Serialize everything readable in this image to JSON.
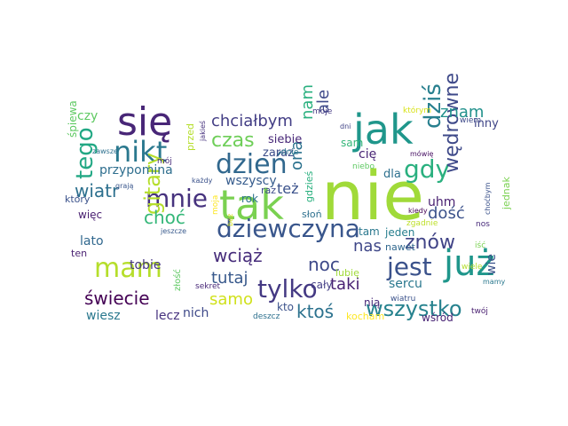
{
  "word_cloud": {
    "words": [
      {
        "text": "nie",
        "color": "#a0da39"
      },
      {
        "text": "się",
        "color": "#482677"
      },
      {
        "text": "jak",
        "color": "#1f968b"
      },
      {
        "text": "tak",
        "color": "#7ad151"
      },
      {
        "text": "już",
        "color": "#1f968b"
      },
      {
        "text": "dzień",
        "color": "#31688e"
      },
      {
        "text": "nikt",
        "color": "#2a788e"
      },
      {
        "text": "dziewczyna",
        "color": "#39568c"
      },
      {
        "text": "mnie",
        "color": "#46327e"
      },
      {
        "text": "mam",
        "color": "#b5de2b"
      },
      {
        "text": "jest",
        "color": "#3b528b"
      },
      {
        "text": "dziś",
        "color": "#277f8e"
      },
      {
        "text": "gdy",
        "color": "#2ab07f"
      },
      {
        "text": "tylko",
        "color": "#443983"
      },
      {
        "text": "wszystko",
        "color": "#26828e"
      },
      {
        "text": "gitary",
        "color": "#b5de2b"
      },
      {
        "text": "tego",
        "color": "#22a884"
      },
      {
        "text": "wędrowne",
        "color": "#3e4989"
      },
      {
        "text": "czas",
        "color": "#6ece58"
      },
      {
        "text": "chciałbym",
        "color": "#433e85"
      },
      {
        "text": "znów",
        "color": "#414487"
      },
      {
        "text": "wiatr",
        "color": "#2d708e"
      },
      {
        "text": "choć",
        "color": "#35b779"
      },
      {
        "text": "świecie",
        "color": "#440154"
      },
      {
        "text": "noc",
        "color": "#3e4989"
      },
      {
        "text": "ktoś",
        "color": "#2c728e"
      },
      {
        "text": "wciąż",
        "color": "#472d7b"
      },
      {
        "text": "tutaj",
        "color": "#38598c"
      },
      {
        "text": "znam",
        "color": "#21918c"
      },
      {
        "text": "samo",
        "color": "#d0e11c"
      },
      {
        "text": "nam",
        "color": "#2ab07f"
      },
      {
        "text": "ale",
        "color": "#3e4989"
      },
      {
        "text": "dość",
        "color": "#3b528b"
      },
      {
        "text": "taki",
        "color": "#482173"
      },
      {
        "text": "nas",
        "color": "#3f4788"
      },
      {
        "text": "ona",
        "color": "#2c728e"
      },
      {
        "text": "też",
        "color": "#3b528b"
      },
      {
        "text": "przypomina",
        "color": "#2e6e8e"
      },
      {
        "text": "wszyscy",
        "color": "#365c8d"
      },
      {
        "text": "wiesz",
        "color": "#2a788e"
      },
      {
        "text": "lecz",
        "color": "#46327e"
      },
      {
        "text": "zaraz",
        "color": "#3d4e8a"
      },
      {
        "text": "siebie",
        "color": "#482878"
      },
      {
        "text": "czy",
        "color": "#5ec962"
      },
      {
        "text": "sercu",
        "color": "#2a788e"
      },
      {
        "text": "uhm",
        "color": "#481f70"
      },
      {
        "text": "cię",
        "color": "#482475"
      },
      {
        "text": "tobie",
        "color": "#453781"
      },
      {
        "text": "nich",
        "color": "#3e4989"
      },
      {
        "text": "inny",
        "color": "#404688"
      },
      {
        "text": "lato",
        "color": "#31688e"
      },
      {
        "text": "cały",
        "color": "#433e85"
      },
      {
        "text": "więc",
        "color": "#481f70"
      },
      {
        "text": "kto",
        "color": "#3b528b"
      },
      {
        "text": "wie",
        "color": "#3b528b"
      },
      {
        "text": "rok",
        "color": "#2c728e"
      },
      {
        "text": "raz",
        "color": "#3e4989"
      },
      {
        "text": "nią",
        "color": "#482878"
      },
      {
        "text": "sam",
        "color": "#35b779"
      },
      {
        "text": "dla",
        "color": "#2d708e"
      },
      {
        "text": "jeden",
        "color": "#277f8e"
      },
      {
        "text": "śpiewa",
        "color": "#5ec962"
      },
      {
        "text": "przed",
        "color": "#b5de2b"
      },
      {
        "text": "tam",
        "color": "#2a788e"
      },
      {
        "text": "ten",
        "color": "#481f70"
      },
      {
        "text": "który",
        "color": "#3b528b"
      },
      {
        "text": "kocham",
        "color": "#fde725"
      },
      {
        "text": "wśród",
        "color": "#482475"
      },
      {
        "text": "gdzieś",
        "color": "#2ab07f"
      },
      {
        "text": "jednak",
        "color": "#7ad151"
      },
      {
        "text": "nawet",
        "color": "#31688e"
      },
      {
        "text": "słoń",
        "color": "#2d708e"
      },
      {
        "text": "złość",
        "color": "#5ec962"
      },
      {
        "text": "sekret",
        "color": "#482878"
      },
      {
        "text": "lubię",
        "color": "#a0da39"
      },
      {
        "text": "zgadnie",
        "color": "#bddf26"
      },
      {
        "text": "moje",
        "color": "#443983"
      },
      {
        "text": "dni",
        "color": "#414487"
      },
      {
        "text": "mówię",
        "color": "#471063"
      },
      {
        "text": "wiem",
        "color": "#3e4989"
      },
      {
        "text": "którym",
        "color": "#d8e219"
      },
      {
        "text": "jakieś",
        "color": "#46327e"
      },
      {
        "text": "dnie",
        "color": "#2a788e"
      },
      {
        "text": "mój",
        "color": "#472a7a"
      },
      {
        "text": "zawsze",
        "color": "#2d708e"
      },
      {
        "text": "grają",
        "color": "#39568c"
      },
      {
        "text": "każdy",
        "color": "#3b528b"
      },
      {
        "text": "niebo",
        "color": "#5ec962"
      },
      {
        "text": "kiedy",
        "color": "#440154"
      },
      {
        "text": "wiele",
        "color": "#b5de2b"
      },
      {
        "text": "choćbym",
        "color": "#3b528b"
      },
      {
        "text": "iść",
        "color": "#7ad151"
      },
      {
        "text": "nos",
        "color": "#472a7a"
      },
      {
        "text": "mamy",
        "color": "#2a788e"
      },
      {
        "text": "wiatru",
        "color": "#3b528b"
      },
      {
        "text": "twój",
        "color": "#481f70"
      },
      {
        "text": "deszcz",
        "color": "#2d708e"
      },
      {
        "text": "jeszcze",
        "color": "#38598c"
      },
      {
        "text": "bez",
        "color": "#d0e11c"
      },
      {
        "text": "moja",
        "color": "#fde725"
      }
    ]
  }
}
